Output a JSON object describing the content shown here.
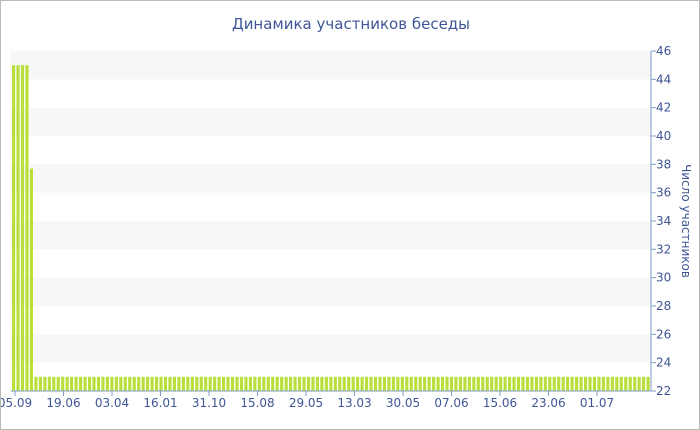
{
  "chart_data": {
    "type": "bar",
    "title": "Динамика участников беседы",
    "ylabel": "Число участников",
    "xlabel": "",
    "ylim": [
      22,
      46
    ],
    "yticks": [
      22,
      24,
      26,
      28,
      30,
      32,
      34,
      36,
      38,
      40,
      42,
      44,
      46
    ],
    "y_axis_position": "right",
    "grid": "alternating horizontal bands",
    "xtick_labels": [
      "05.09",
      "19.06",
      "03.04",
      "16.01",
      "31.10",
      "15.08",
      "29.05",
      "13.03",
      "30.05",
      "07.06",
      "15.06",
      "23.06",
      "01.07"
    ],
    "bar_color": "#b8df3a",
    "values": [
      45,
      45,
      45,
      45,
      37.7,
      23,
      23,
      23,
      23,
      23,
      23,
      23,
      23,
      23,
      23,
      23,
      23,
      23,
      23,
      23,
      23,
      23,
      23,
      23,
      23,
      23,
      23,
      23,
      23,
      23,
      23,
      23,
      23,
      23,
      23,
      23,
      23,
      23,
      23,
      23,
      23,
      23,
      23,
      23,
      23,
      23,
      23,
      23,
      23,
      23,
      23,
      23,
      23,
      23,
      23,
      23,
      23,
      23,
      23,
      23,
      23,
      23,
      23,
      23,
      23,
      23,
      23,
      23,
      23,
      23,
      23,
      23,
      23,
      23,
      23,
      23,
      23,
      23,
      23,
      23,
      23,
      23,
      23,
      23,
      23,
      23,
      23,
      23,
      23,
      23,
      23,
      23,
      23,
      23,
      23,
      23,
      23,
      23,
      23,
      23,
      23,
      23,
      23,
      23,
      23,
      23,
      23,
      23,
      23,
      23,
      23,
      23,
      23,
      23,
      23,
      23,
      23,
      23,
      23,
      23,
      23,
      23,
      23,
      23,
      23,
      23,
      23,
      23,
      23,
      23,
      23,
      23,
      23,
      23,
      23,
      23,
      23,
      23,
      23,
      23,
      23,
      23,
      23
    ]
  }
}
